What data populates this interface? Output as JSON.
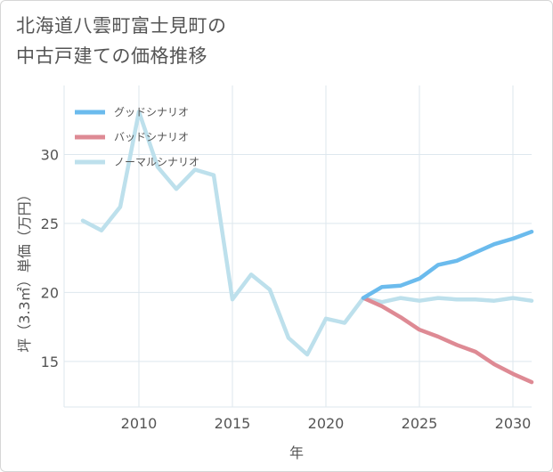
{
  "title_lines": [
    "北海道八雲町富士見町の",
    "中古戸建ての価格推移"
  ],
  "chart_data": {
    "type": "line",
    "xlabel": "年",
    "ylabel": "坪（3.3㎡）単価（万円）",
    "xlim": [
      2006.0,
      2031.0
    ],
    "ylim": [
      11.7,
      35.0
    ],
    "x_ticks": [
      2010,
      2015,
      2020,
      2025,
      2030
    ],
    "y_ticks": [
      15,
      20,
      25,
      30
    ],
    "grid": true,
    "legend_position": "top-left",
    "series": [
      {
        "name": "グッドシナリオ",
        "color": "#6bbbed",
        "x": [
          2022,
          2023,
          2024,
          2025,
          2026,
          2027,
          2028,
          2029,
          2030,
          2031
        ],
        "y": [
          19.6,
          20.4,
          20.5,
          21.0,
          22.0,
          22.3,
          22.9,
          23.5,
          23.9,
          24.4
        ]
      },
      {
        "name": "バッドシナリオ",
        "color": "#de8a94",
        "x": [
          2022,
          2023,
          2024,
          2025,
          2026,
          2027,
          2028,
          2029,
          2030,
          2031
        ],
        "y": [
          19.6,
          19.0,
          18.2,
          17.3,
          16.8,
          16.2,
          15.7,
          14.8,
          14.1,
          13.5
        ]
      },
      {
        "name": "ノーマルシナリオ",
        "color": "#bde0ec",
        "x": [
          2007,
          2008,
          2009,
          2010,
          2011,
          2012,
          2013,
          2014,
          2015,
          2016,
          2017,
          2018,
          2019,
          2020,
          2021,
          2022,
          2023,
          2024,
          2025,
          2026,
          2027,
          2028,
          2029,
          2030,
          2031
        ],
        "y": [
          25.2,
          24.5,
          26.2,
          33.1,
          29.1,
          27.5,
          28.9,
          28.5,
          19.5,
          21.3,
          20.2,
          16.7,
          15.5,
          18.1,
          17.8,
          19.6,
          19.3,
          19.6,
          19.4,
          19.6,
          19.5,
          19.5,
          19.4,
          19.6,
          19.4
        ]
      }
    ]
  }
}
